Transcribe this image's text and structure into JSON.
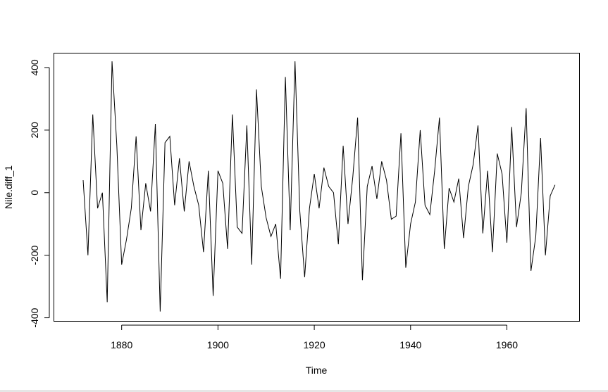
{
  "chart_data": {
    "type": "line",
    "title": "",
    "xlabel": "Time",
    "ylabel": "Nile.diff_1",
    "xlim": [
      1866,
      1975
    ],
    "ylim": [
      -410,
      445
    ],
    "x_ticks": [
      1880,
      1900,
      1920,
      1940,
      1960
    ],
    "y_ticks": [
      -400,
      -200,
      0,
      200,
      400
    ],
    "grid": false,
    "series": [
      {
        "color": "#000000",
        "x": [
          1872,
          1873,
          1874,
          1875,
          1876,
          1877,
          1878,
          1879,
          1880,
          1881,
          1882,
          1883,
          1884,
          1885,
          1886,
          1887,
          1888,
          1889,
          1890,
          1891,
          1892,
          1893,
          1894,
          1895,
          1896,
          1897,
          1898,
          1899,
          1900,
          1901,
          1902,
          1903,
          1904,
          1905,
          1906,
          1907,
          1908,
          1909,
          1910,
          1911,
          1912,
          1913,
          1914,
          1915,
          1916,
          1917,
          1918,
          1919,
          1920,
          1921,
          1922,
          1923,
          1924,
          1925,
          1926,
          1927,
          1928,
          1929,
          1930,
          1931,
          1932,
          1933,
          1934,
          1935,
          1936,
          1937,
          1938,
          1939,
          1940,
          1941,
          1942,
          1943,
          1944,
          1945,
          1946,
          1947,
          1948,
          1949,
          1950,
          1951,
          1952,
          1953,
          1954,
          1955,
          1956,
          1957,
          1958,
          1959,
          1960,
          1961,
          1962,
          1963,
          1964,
          1965,
          1966,
          1967,
          1968,
          1969,
          1970
        ],
        "values": [
          40,
          -200,
          250,
          -50,
          0,
          -350,
          420,
          150,
          -230,
          -150,
          -50,
          180,
          -120,
          30,
          -60,
          220,
          -380,
          160,
          180,
          -40,
          110,
          -60,
          100,
          20,
          -40,
          -190,
          70,
          -330,
          70,
          30,
          -180,
          250,
          -110,
          -130,
          215,
          -230,
          330,
          20,
          -80,
          -140,
          -100,
          -275,
          370,
          -120,
          420,
          -60,
          -270,
          -50,
          60,
          -50,
          80,
          20,
          0,
          -165,
          150,
          -100,
          50,
          240,
          -280,
          20,
          85,
          -20,
          100,
          40,
          -85,
          -75,
          190,
          -240,
          -100,
          -30,
          200,
          -40,
          -70,
          70,
          240,
          -180,
          15,
          -30,
          45,
          -145,
          20,
          90,
          215,
          -130,
          70,
          -190,
          125,
          60,
          -160,
          210,
          -110,
          0,
          270,
          -250,
          -140,
          175,
          -200,
          -10,
          25
        ]
      }
    ]
  }
}
